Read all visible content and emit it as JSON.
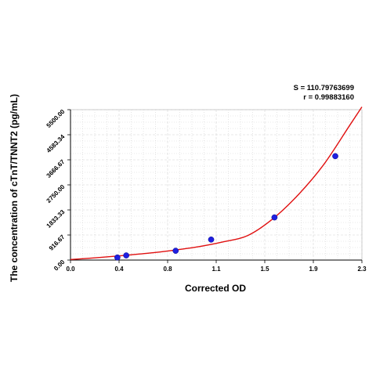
{
  "stats": {
    "s_text": "S = 110.79763699",
    "r_text": "r = 0.99883160"
  },
  "chart_data": {
    "type": "scatter",
    "title": "",
    "xlabel": "Corrected OD",
    "ylabel": "The concentration of cTnT/TNNT2 (pg/mL)",
    "xlim": [
      0.0,
      2.3
    ],
    "ylim": [
      0.0,
      5500.0
    ],
    "x_ticks": [
      "0.0",
      "0.4",
      "0.8",
      "1.1",
      "1.5",
      "1.9",
      "2.3"
    ],
    "y_ticks": [
      "0.00",
      "916.67",
      "1833.33",
      "2750.00",
      "3666.67",
      "4583.34",
      "5500.00"
    ],
    "grid": true,
    "series": [
      {
        "kind": "points",
        "color": "#1f1fe0",
        "x": [
          0.37,
          0.44,
          0.83,
          1.11,
          1.61,
          2.09
        ],
        "y": [
          94,
          170,
          340,
          750,
          1560,
          3800
        ]
      },
      {
        "kind": "fit-curve",
        "color": "#e01010",
        "x": [
          0.0,
          0.2,
          0.4,
          0.6,
          0.8,
          1.0,
          1.2,
          1.4,
          1.6,
          1.8,
          2.0,
          2.2,
          2.3
        ],
        "y": [
          20,
          85,
          160,
          245,
          350,
          480,
          660,
          900,
          1520,
          2400,
          3500,
          4900,
          5600
        ]
      }
    ]
  }
}
